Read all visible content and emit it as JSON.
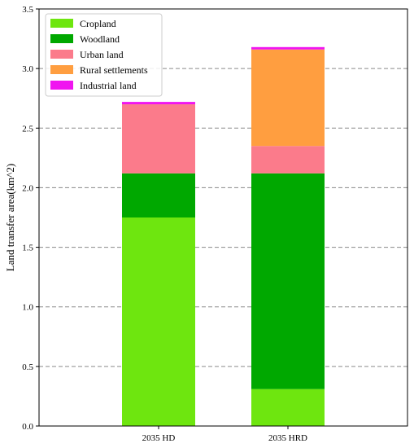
{
  "chart_data": {
    "type": "bar",
    "stacked": true,
    "categories": [
      "2035 HD",
      "2035 HRD"
    ],
    "ylabel": "Land transfer area(km^2)",
    "xlabel": "",
    "ylim": [
      0,
      3.5
    ],
    "yticks": [
      "0.0",
      "0.5",
      "1.0",
      "1.5",
      "2.0",
      "2.5",
      "3.0",
      "3.5"
    ],
    "grid": "horizontal dashed",
    "legend_position": "top-left",
    "series": [
      {
        "name": "Cropland",
        "color": "#6ee60f",
        "values": [
          1.75,
          0.31
        ]
      },
      {
        "name": "Woodland",
        "color": "#00a800",
        "values": [
          0.37,
          1.81
        ]
      },
      {
        "name": "Urban land",
        "color": "#fb7b8b",
        "values": [
          0.58,
          0.23
        ]
      },
      {
        "name": "Rural settlements",
        "color": "#ff9e40",
        "values": [
          0.0,
          0.81
        ]
      },
      {
        "name": "Industrial land",
        "color": "#f015f0",
        "values": [
          0.02,
          0.02
        ]
      }
    ]
  }
}
